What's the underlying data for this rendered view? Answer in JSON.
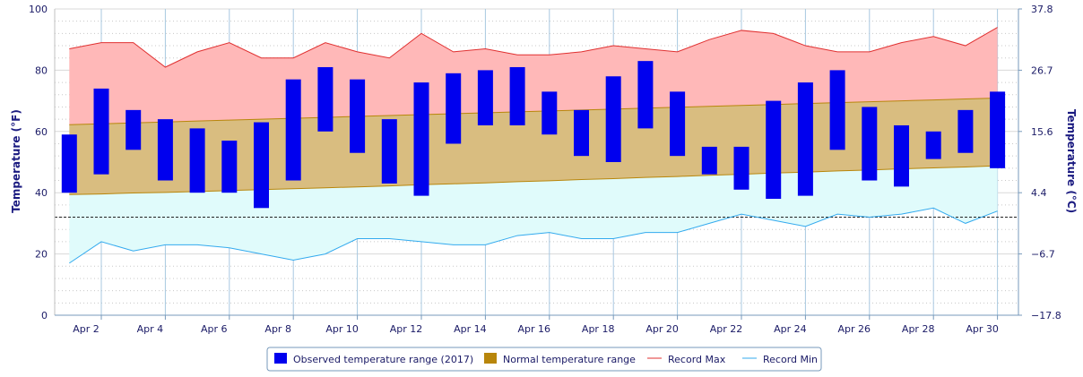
{
  "chart_data": {
    "type": "bar",
    "title": "",
    "xlabel": "",
    "ylabel": "Temperature (°F)",
    "ylabel_right": "Temperature (°C)",
    "ylim": [
      0,
      100
    ],
    "y_ticks": [
      "0",
      "20",
      "40",
      "60",
      "80",
      "100"
    ],
    "y2_ticks": [
      "−17.8",
      "−6.7",
      "4.4",
      "15.6",
      "26.7",
      "37.8"
    ],
    "freezing_line": 32,
    "grid": true,
    "legend_position": "bottom-center",
    "days": [
      1,
      2,
      3,
      4,
      5,
      6,
      7,
      8,
      9,
      10,
      11,
      12,
      13,
      14,
      15,
      16,
      17,
      18,
      19,
      20,
      21,
      22,
      23,
      24,
      25,
      26,
      27,
      28,
      29,
      30
    ],
    "x_tick_labels": [
      "Apr 2",
      "Apr 4",
      "Apr 6",
      "Apr 8",
      "Apr 10",
      "Apr 12",
      "Apr 14",
      "Apr 16",
      "Apr 18",
      "Apr 20",
      "Apr 22",
      "Apr 24",
      "Apr 26",
      "Apr 28",
      "Apr 30"
    ],
    "x_tick_days": [
      2,
      4,
      6,
      8,
      10,
      12,
      14,
      16,
      18,
      20,
      22,
      24,
      26,
      28,
      30
    ],
    "series": [
      {
        "name": "Observed temperature range (2017)",
        "color": "#0000ee",
        "low": [
          40,
          46,
          54,
          44,
          40,
          40,
          35,
          44,
          60,
          53,
          43,
          39,
          56,
          62,
          62,
          59,
          52,
          50,
          61,
          52,
          46,
          41,
          38,
          39,
          54,
          44,
          42,
          51,
          53,
          48
        ],
        "high": [
          59,
          74,
          67,
          64,
          61,
          57,
          63,
          77,
          81,
          77,
          64,
          76,
          79,
          80,
          81,
          73,
          67,
          78,
          83,
          73,
          55,
          55,
          70,
          76,
          80,
          68,
          62,
          60,
          67,
          73
        ]
      },
      {
        "name": "Normal temperature range",
        "color": "#b8860b",
        "low": [
          39.4,
          39.6,
          39.9,
          40.1,
          40.4,
          40.7,
          41.0,
          41.3,
          41.6,
          41.9,
          42.2,
          42.6,
          42.9,
          43.2,
          43.6,
          43.9,
          44.3,
          44.6,
          45.0,
          45.3,
          45.7,
          46.0,
          46.4,
          46.7,
          47.1,
          47.4,
          47.8,
          48.1,
          48.4,
          48.8
        ],
        "high": [
          62.2,
          62.5,
          62.8,
          63.1,
          63.4,
          63.7,
          64.0,
          64.3,
          64.6,
          64.9,
          65.2,
          65.5,
          65.8,
          66.1,
          66.4,
          66.7,
          67.0,
          67.3,
          67.6,
          67.9,
          68.2,
          68.5,
          68.8,
          69.1,
          69.4,
          69.7,
          70.0,
          70.3,
          70.6,
          70.9
        ]
      },
      {
        "name": "Record Max",
        "color": "#e03030",
        "values": [
          87,
          89,
          89,
          81,
          86,
          89,
          84,
          84,
          89,
          86,
          84,
          92,
          86,
          87,
          85,
          85,
          86,
          88,
          87,
          86,
          90,
          93,
          92,
          88,
          86,
          86,
          89,
          91,
          88,
          94
        ]
      },
      {
        "name": "Record Min",
        "color": "#33aaee",
        "values": [
          17,
          24,
          21,
          23,
          23,
          22,
          20,
          18,
          20,
          25,
          25,
          24,
          23,
          23,
          26,
          27,
          25,
          25,
          27,
          27,
          30,
          33,
          31,
          29,
          33,
          32,
          33,
          35,
          30,
          34
        ]
      }
    ]
  }
}
